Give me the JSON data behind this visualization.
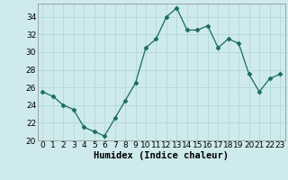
{
  "x": [
    0,
    1,
    2,
    3,
    4,
    5,
    6,
    7,
    8,
    9,
    10,
    11,
    12,
    13,
    14,
    15,
    16,
    17,
    18,
    19,
    20,
    21,
    22,
    23
  ],
  "y": [
    25.5,
    25.0,
    24.0,
    23.5,
    21.5,
    21.0,
    20.5,
    22.5,
    24.5,
    26.5,
    30.5,
    31.5,
    34.0,
    35.0,
    32.5,
    32.5,
    33.0,
    30.5,
    31.5,
    31.0,
    27.5,
    25.5,
    27.0,
    27.5
  ],
  "xlim": [
    -0.5,
    23.5
  ],
  "ylim": [
    20,
    35.5
  ],
  "yticks": [
    20,
    22,
    24,
    26,
    28,
    30,
    32,
    34
  ],
  "xticks": [
    0,
    1,
    2,
    3,
    4,
    5,
    6,
    7,
    8,
    9,
    10,
    11,
    12,
    13,
    14,
    15,
    16,
    17,
    18,
    19,
    20,
    21,
    22,
    23
  ],
  "xlabel": "Humidex (Indice chaleur)",
  "line_color": "#1a6b5a",
  "marker": "D",
  "marker_size": 2.5,
  "background_color": "#ceeaec",
  "grid_color": "#aed4d8",
  "tick_label_fontsize": 6.5,
  "xlabel_fontsize": 7.5
}
